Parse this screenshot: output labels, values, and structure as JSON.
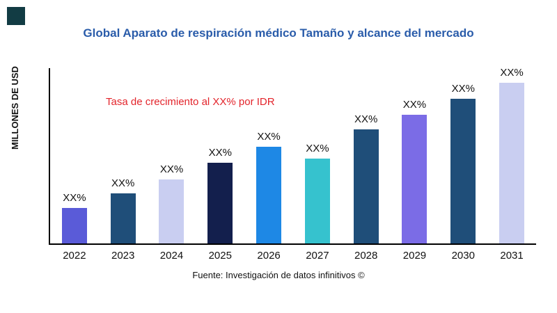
{
  "title": "Global Aparato de respiración médico Tamaño y alcance del mercado",
  "title_color": "#2a5caa",
  "ylabel": "MILLONES DE USD",
  "annotation": "Tasa de crecimiento al XX% por IDR",
  "annotation_color": "#e3242b",
  "source": "Fuente: Investigación de datos infinitivos ©",
  "logo_color": "#123c44",
  "chart_data": {
    "type": "bar",
    "title": "Global Aparato de respiración médico Tamaño y alcance del mercado",
    "xlabel": "",
    "ylabel": "MILLONES DE USD",
    "ylim": [
      0,
      100
    ],
    "grid": false,
    "legend": "none",
    "categories": [
      "2022",
      "2023",
      "2024",
      "2025",
      "2026",
      "2027",
      "2028",
      "2029",
      "2030",
      "2031"
    ],
    "values": [
      22,
      31,
      40,
      50,
      60,
      53,
      71,
      80,
      90,
      100
    ],
    "value_labels": [
      "XX%",
      "XX%",
      "XX%",
      "XX%",
      "XX%",
      "XX%",
      "XX%",
      "XX%",
      "XX%",
      "XX%"
    ],
    "bar_colors": [
      "#5a5bd8",
      "#1f4e79",
      "#c9cef1",
      "#131f4d",
      "#1e88e5",
      "#36c2ce",
      "#1f4e79",
      "#7b6ce6",
      "#1f4e79",
      "#c9cef1"
    ],
    "annotation": "Tasa de crecimiento al XX% por IDR"
  }
}
